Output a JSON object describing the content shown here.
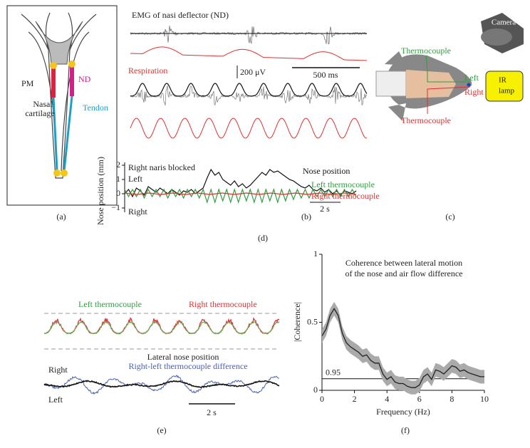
{
  "panel_a": {
    "caption": "(a)",
    "pm": "PM",
    "nd": "ND",
    "nasal_cartilage": [
      "Nasal",
      "cartilage"
    ],
    "tendon": "Tendon"
  },
  "panel_b": {
    "caption": "(b)",
    "emg_label": "EMG of nasi deflector (ND)",
    "respiration_label": "Respiration",
    "voltage_scale": "200 μV",
    "time_scale": "500 ms"
  },
  "panel_c": {
    "caption": "(c)",
    "camera": "Camera",
    "ir_lamp": [
      "IR",
      "lamp"
    ],
    "thermocouple_top": "Thermocouple",
    "thermocouple_bottom": "Thermocouple",
    "left": "Left",
    "right": "Right"
  },
  "panel_e": {
    "caption": "(e)",
    "left_thermocouple": "Left thermocouple",
    "right_thermocouple": "Right thermocouple",
    "lateral_nose_position": "Lateral nose position",
    "difference": "Right-left thermocouple difference",
    "right": "Right",
    "left": "Left",
    "time_scale": "2 s"
  },
  "chart_data": [
    {
      "type": "line",
      "caption": "(d)",
      "y_label": "Nose position (mm)",
      "ylim": [
        -1.3,
        2.2
      ],
      "yticks": [
        {
          "value": -1,
          "label": "−1"
        },
        0,
        1,
        2
      ],
      "annotations": {
        "blocked": "Right naris blocked",
        "left": "Left",
        "right": "Right",
        "time_scale": "2 s"
      },
      "series": [
        {
          "name": "Nose position",
          "color": "#111111",
          "values": [
            0,
            0.3,
            -0.2,
            0.4,
            0.2,
            -0.1,
            0.5,
            0.3,
            0.1,
            0.4,
            0.2,
            0.0,
            0.3,
            0.1,
            -0.1,
            0.2,
            0.1,
            0.3,
            0.0,
            0.2,
            0.4,
            1.1,
            1.7,
            1.3,
            1.5,
            1.0,
            0.8,
            0.6,
            0.9,
            0.5,
            0.7,
            0.4,
            0.6,
            0.9,
            1.2,
            1.5,
            1.3,
            1.7,
            1.5,
            1.6,
            1.4,
            1.2,
            1.0,
            0.9,
            0.7,
            0.5,
            0.4,
            0.6,
            0.3,
            0.2,
            0.4,
            0.1,
            0.3,
            0.0,
            0.2,
            -0.1,
            0.2,
            0.1,
            0.0,
            0.2
          ]
        },
        {
          "name": "Left thermocouple",
          "color": "#2e9e3e",
          "values": [
            0.3,
            -0.2,
            0.3,
            -0.2,
            0.3,
            -0.3,
            0.3,
            -0.2,
            0.3,
            -0.2,
            0.3,
            -0.3,
            0.3,
            -0.2,
            0.3,
            -0.3,
            0.3,
            -0.2,
            0.3,
            -0.3,
            0.3,
            -0.6,
            0.3,
            -0.6,
            0.3,
            -0.5,
            0.3,
            -0.6,
            0.3,
            -0.6,
            0.3,
            -0.5,
            0.3,
            -0.6,
            0.3,
            -0.6,
            0.3,
            -0.5,
            0.3,
            -0.6,
            0.3,
            -0.5,
            0.3,
            -0.4,
            0.3,
            -0.3,
            0.3,
            -0.3,
            0.3,
            -0.2,
            0.3,
            -0.2,
            0.3,
            -0.2,
            0.3,
            -0.2,
            0.3,
            -0.2,
            0.3,
            -0.2
          ]
        },
        {
          "name": "Right thermocouple",
          "color": "#e03030",
          "values": [
            0.05,
            -0.05,
            0.05,
            -0.05,
            0.05,
            -0.05,
            0.05,
            -0.05,
            0.05,
            -0.05,
            0.05,
            -0.05,
            0.05,
            -0.05,
            0.05,
            -0.05,
            0.05,
            -0.05,
            0.05,
            -0.05
          ]
        }
      ]
    },
    {
      "type": "line",
      "caption": "(f)",
      "title": [
        "Coherence between lateral motion",
        "of the nose and air flow difference"
      ],
      "x_label": "Frequency (Hz)",
      "y_label": "|Coherence|",
      "xlim": [
        0,
        10
      ],
      "xticks": [
        0,
        2,
        4,
        6,
        8,
        10
      ],
      "ylim": [
        0,
        1
      ],
      "yticks": [
        0,
        0.5,
        1
      ],
      "significance": {
        "value": 0.085,
        "label": "0.95"
      },
      "x": [
        0,
        0.25,
        0.5,
        0.75,
        1,
        1.25,
        1.5,
        1.75,
        2,
        2.25,
        2.5,
        2.75,
        3,
        3.25,
        3.5,
        3.75,
        4,
        4.25,
        4.5,
        4.75,
        5,
        5.25,
        5.5,
        5.75,
        6,
        6.25,
        6.5,
        6.75,
        7,
        7.25,
        7.5,
        7.75,
        8,
        8.25,
        8.5,
        8.75,
        9,
        9.25,
        9.5,
        9.75,
        10
      ],
      "values": [
        0.4,
        0.45,
        0.55,
        0.6,
        0.55,
        0.42,
        0.35,
        0.32,
        0.3,
        0.28,
        0.25,
        0.26,
        0.22,
        0.2,
        0.2,
        0.12,
        0.08,
        0.1,
        0.06,
        0.05,
        0.05,
        0.03,
        0.02,
        0.02,
        0.04,
        0.1,
        0.12,
        0.08,
        0.15,
        0.14,
        0.12,
        0.15,
        0.18,
        0.17,
        0.14,
        0.15,
        0.13,
        0.12,
        0.11,
        0.1,
        0.1
      ],
      "error": 0.05,
      "color": "#222222",
      "band_color": "#aaaaaa"
    }
  ]
}
